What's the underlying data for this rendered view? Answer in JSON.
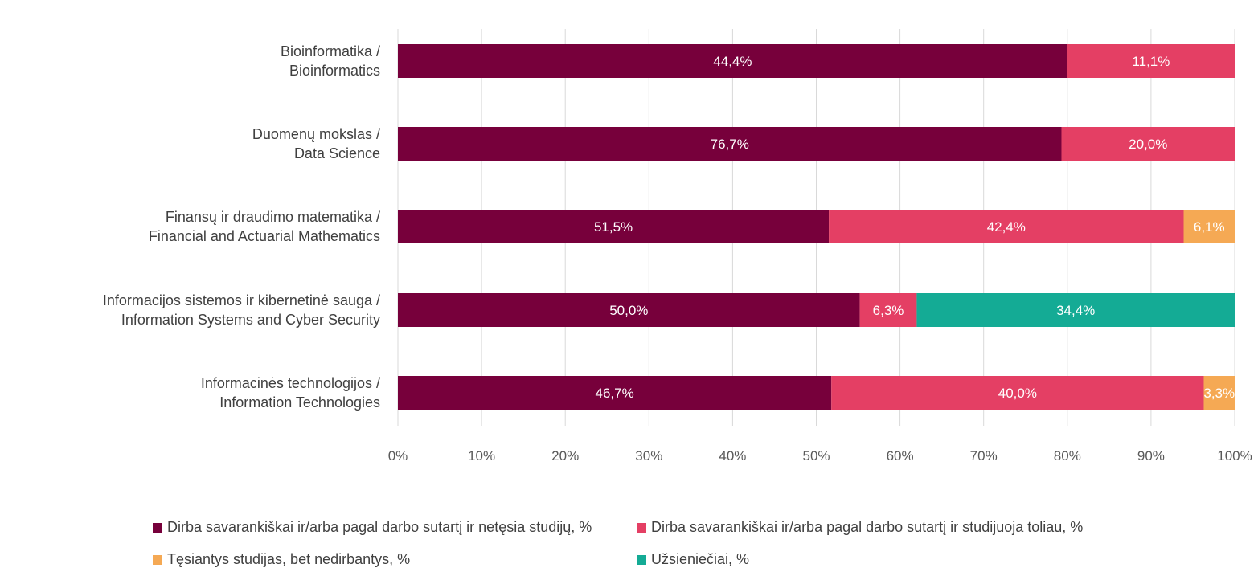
{
  "chart_data": {
    "type": "bar",
    "orientation": "horizontal",
    "stacked": "percent",
    "categories": [
      [
        "Bioinformatika /",
        "Bioinformatics"
      ],
      [
        "Duomenų mokslas /",
        "Data Science"
      ],
      [
        "Finansų ir draudimo matematika /",
        "Financial and Actuarial Mathematics"
      ],
      [
        "Informacijos sistemos ir kibernetinė sauga /",
        "Information Systems and Cyber Security"
      ],
      [
        "Informacinės technologijos /",
        "Information Technologies"
      ]
    ],
    "series": [
      {
        "name": "Dirba savarankiškai ir/arba pagal darbo sutartį ir netęsia studijų, %",
        "color": "#77003b",
        "segment_shares": [
          0.8,
          0.793,
          0.515,
          0.552,
          0.518
        ],
        "labels": [
          "44,4%",
          "76,7%",
          "51,5%",
          "50,0%",
          "46,7%"
        ]
      },
      {
        "name": "Dirba savarankiškai ir/arba pagal darbo sutartį ir studijuoja toliau, %",
        "color": "#e43f64",
        "segment_shares": [
          0.2,
          0.207,
          0.424,
          0.068,
          0.445
        ],
        "labels": [
          "11,1%",
          "20,0%",
          "42,4%",
          "6,3%",
          "40,0%"
        ]
      },
      {
        "name": "Tęsiantys studijas, bet nedirbantys, %",
        "color": "#f5a954",
        "segment_shares": [
          0,
          0,
          0.061,
          0,
          0.037
        ],
        "labels": [
          "",
          "",
          "6,1%",
          "",
          "3,3%"
        ]
      },
      {
        "name": "Užsieniečiai, %",
        "color": "#14ab95",
        "segment_shares": [
          0,
          0,
          0,
          0.38,
          0
        ],
        "labels": [
          "",
          "",
          "",
          "34,4%",
          ""
        ]
      }
    ],
    "x_ticks": [
      "0%",
      "10%",
      "20%",
      "30%",
      "40%",
      "50%",
      "60%",
      "70%",
      "80%",
      "90%",
      "100%"
    ],
    "xlim": [
      0,
      100
    ],
    "grid": true,
    "legend_position": "bottom"
  }
}
